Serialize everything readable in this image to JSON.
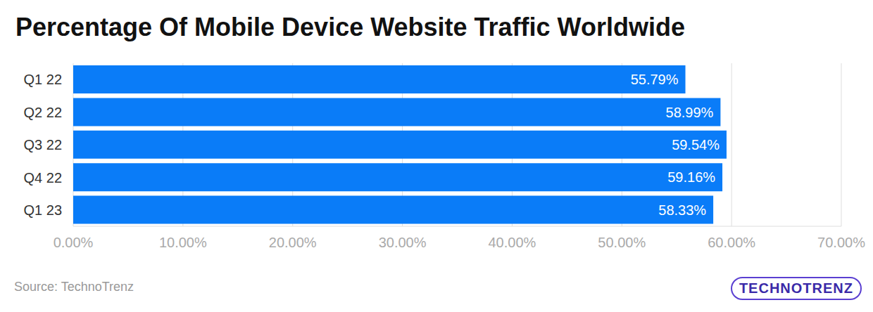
{
  "chart_data": {
    "type": "bar",
    "title": "Percentage Of Mobile Device Website Traffic Worldwide",
    "orientation": "horizontal",
    "categories": [
      "Q1 22",
      "Q2 22",
      "Q3 22",
      "Q4 22",
      "Q1 23"
    ],
    "values": [
      55.79,
      58.99,
      59.54,
      59.16,
      58.33
    ],
    "value_labels": [
      "55.79%",
      "58.99%",
      "59.54%",
      "59.16%",
      "58.33%"
    ],
    "data_labels": true,
    "color": "#0a7cf8",
    "xlim": [
      0,
      70
    ],
    "xticks": [
      {
        "value": 0,
        "label": "0.00%"
      },
      {
        "value": 10,
        "label": "10.00%"
      },
      {
        "value": 20,
        "label": "20.00%"
      },
      {
        "value": 30,
        "label": "30.00%"
      },
      {
        "value": 40,
        "label": "40.00%"
      },
      {
        "value": 50,
        "label": "50.00%"
      },
      {
        "value": 60,
        "label": "60.00%"
      },
      {
        "value": 70,
        "label": "70.00%"
      }
    ],
    "grid": true,
    "source": "Source: TechnoTrenz",
    "logo": "TECHNOTRENZ"
  }
}
